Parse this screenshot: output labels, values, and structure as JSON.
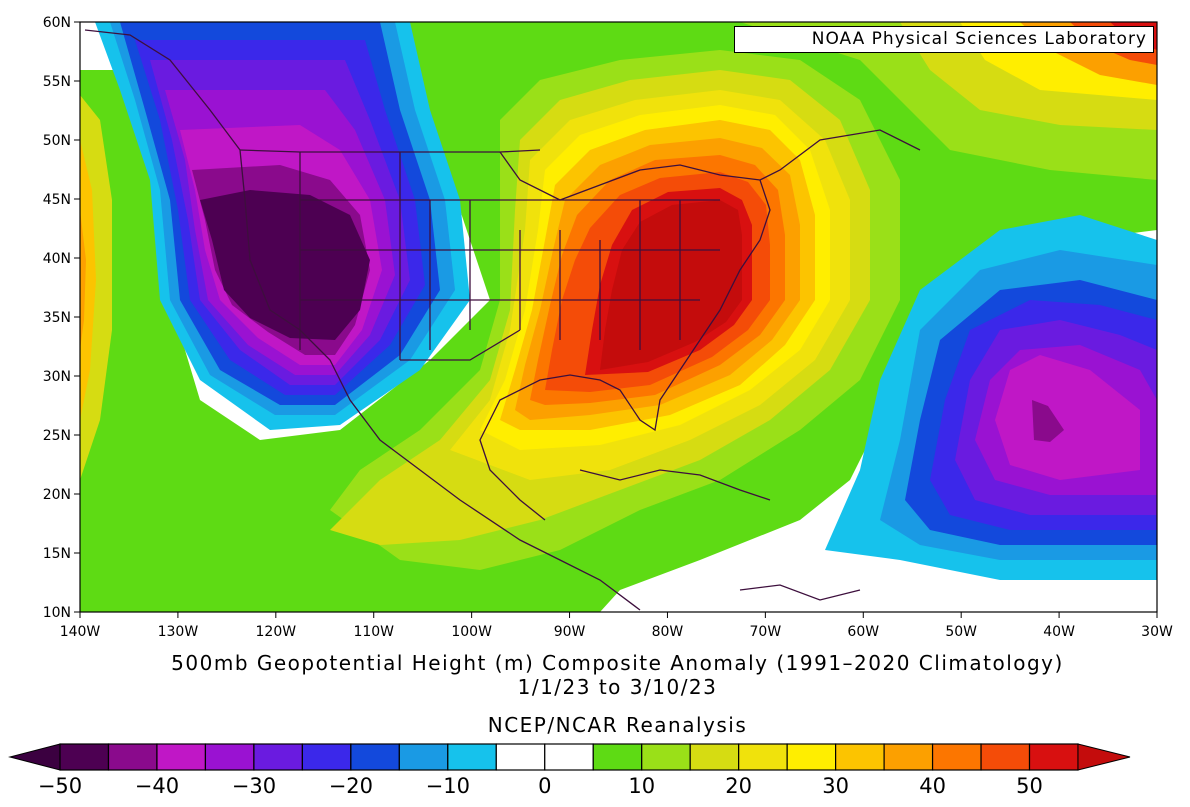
{
  "credit": "NOAA Physical Sciences Laboratory",
  "title": {
    "line1": "500mb Geopotential Height (m) Composite Anomaly (1991–2020 Climatology)",
    "line2": "1/1/23  to 3/10/23",
    "source": "NCEP/NCAR Reanalysis"
  },
  "map": {
    "lat_labels": [
      "60N",
      "55N",
      "50N",
      "45N",
      "40N",
      "35N",
      "30N",
      "25N",
      "20N",
      "15N",
      "10N"
    ],
    "lon_labels": [
      "140W",
      "130W",
      "120W",
      "110W",
      "100W",
      "90W",
      "80W",
      "70W",
      "60W",
      "50W",
      "40W",
      "30W"
    ],
    "lat_range": [
      10,
      60
    ],
    "lon_range": [
      -140,
      -30
    ],
    "anomaly_features": [
      {
        "type": "low",
        "center_lon": -122,
        "center_lat": 41,
        "value": -50
      },
      {
        "type": "high",
        "center_lon": -78,
        "center_lat": 38,
        "value": 50
      },
      {
        "type": "low",
        "center_lon": -43,
        "center_lat": 25,
        "value": -40
      },
      {
        "type": "high",
        "center_lon": -31,
        "center_lat": 55,
        "value": 45
      }
    ]
  },
  "colorbar": {
    "tick_labels": [
      "−50",
      "−40",
      "−30",
      "−20",
      "−10",
      "0",
      "10",
      "20",
      "30",
      "40",
      "50"
    ],
    "colors": [
      "#4d0052",
      "#8a0a8c",
      "#c017c6",
      "#9a12d2",
      "#6a1be0",
      "#3b28ea",
      "#1349dc",
      "#1a9ae4",
      "#16c2ec",
      "#ffffff",
      "#ffffff",
      "#5edb14",
      "#9ae018",
      "#d6dc12",
      "#f0e20c",
      "#ffee00",
      "#fcc400",
      "#fca000",
      "#fc7600",
      "#f44c08",
      "#d81010"
    ],
    "end_low_color": "#3b0040",
    "end_high_color": "#c40c0c"
  }
}
